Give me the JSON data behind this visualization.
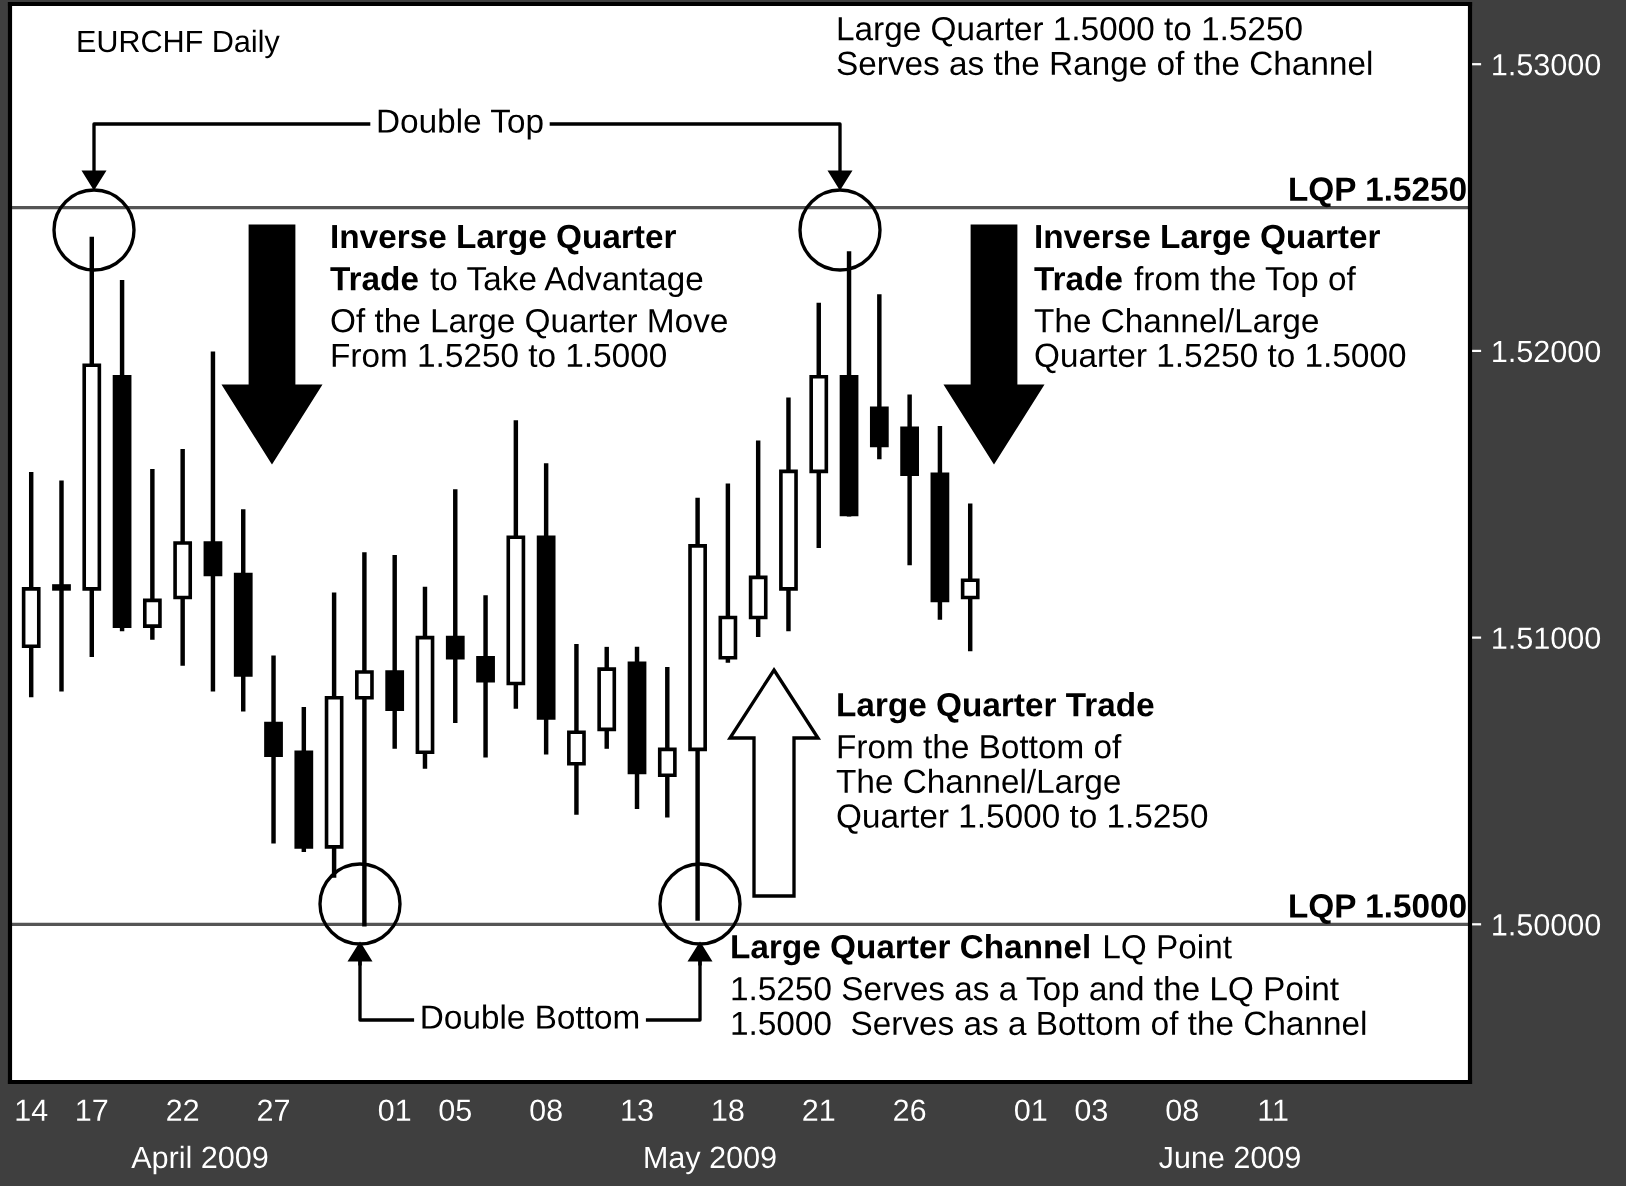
{
  "chart_data": {
    "type": "candlestick",
    "title": "EURCHF Daily",
    "categories": [
      "14",
      null,
      "17",
      null,
      null,
      "22",
      null,
      null,
      "27",
      null,
      null,
      null,
      "01",
      null,
      "05",
      null,
      null,
      "08",
      null,
      null,
      "13",
      null,
      null,
      "18",
      null,
      null,
      "21",
      null,
      null,
      "26",
      null,
      null,
      null,
      "01",
      null,
      "03",
      null,
      null,
      "08",
      null,
      null,
      "11",
      null,
      null,
      null,
      null,
      null,
      null
    ],
    "ohlc": [
      [
        1.5097,
        1.5157,
        1.508,
        1.5117
      ],
      [
        1.5117,
        1.5154,
        1.5082,
        1.5118
      ],
      [
        1.5117,
        1.5239,
        1.5094,
        1.5195
      ],
      [
        1.5191,
        1.5224,
        1.5103,
        1.5104
      ],
      [
        1.5104,
        1.5158,
        1.51,
        1.5113
      ],
      [
        1.5114,
        1.5165,
        1.5091,
        1.5133
      ],
      [
        1.5133,
        1.5199,
        1.5082,
        1.5122
      ],
      [
        1.5122,
        1.5144,
        1.5075,
        1.5087
      ],
      [
        1.507,
        1.5093,
        1.5029,
        1.5059
      ],
      [
        1.506,
        1.5075,
        1.5026,
        1.5027
      ],
      [
        1.5027,
        1.5115,
        1.5017,
        1.5079
      ],
      [
        1.5079,
        1.5129,
        1.5,
        1.5088
      ],
      [
        1.5088,
        1.5128,
        1.5062,
        1.5075
      ],
      [
        1.506,
        1.5117,
        1.5055,
        1.51
      ],
      [
        1.51,
        1.5151,
        1.5071,
        1.5093
      ],
      [
        1.5093,
        1.5114,
        1.5059,
        1.5085
      ],
      [
        1.5084,
        1.5175,
        1.5076,
        1.5135
      ],
      [
        1.5135,
        1.516,
        1.506,
        1.5072
      ],
      [
        1.5056,
        1.5097,
        1.5039,
        1.5067
      ],
      [
        1.5068,
        1.5096,
        1.5062,
        1.5089
      ],
      [
        1.5091,
        1.5096,
        1.5041,
        1.5053
      ],
      [
        1.5052,
        1.5089,
        1.5038,
        1.5061
      ],
      [
        1.5061,
        1.5148,
        1.5002,
        1.5132
      ],
      [
        1.5093,
        1.5153,
        1.5092,
        1.5107
      ],
      [
        1.5107,
        1.5168,
        1.5101,
        1.5121
      ],
      [
        1.5117,
        1.5183,
        1.5103,
        1.5158
      ],
      [
        1.5158,
        1.5216,
        1.5132,
        1.5191
      ],
      [
        1.5191,
        1.5234,
        1.5143,
        1.5143
      ],
      [
        1.518,
        1.5219,
        1.5163,
        1.5167
      ],
      [
        1.5173,
        1.5184,
        1.5126,
        1.5157
      ],
      [
        1.5157,
        1.5173,
        1.5107,
        1.5113
      ],
      [
        1.5114,
        1.5146,
        1.5096,
        1.512
      ],
      null,
      null,
      null,
      null,
      null,
      null,
      null,
      null,
      null,
      null,
      null,
      null,
      null,
      null,
      null,
      null
    ],
    "ylim": [
      1.4945,
      1.5321
    ],
    "yticks": [
      {
        "value": 1.5,
        "label": "1.50000"
      },
      {
        "value": 1.51,
        "label": "1.51000"
      },
      {
        "value": 1.52,
        "label": "1.52000"
      },
      {
        "value": 1.53,
        "label": "1.53000"
      }
    ],
    "ref_lines": [
      {
        "axis": "y",
        "value": 1.525,
        "label": "LQP 1.5250",
        "color": "#555555"
      },
      {
        "axis": "y",
        "value": 1.5,
        "label": "LQP 1.5000",
        "color": "#555555"
      }
    ],
    "annotations": [
      "Large Quarter 1.5000 to 1.5250\nServes as the Range of the Channel",
      "Double Top",
      "Inverse Large Quarter",
      "Trade",
      "to Take Advantage",
      "Of the Large Quarter Move\nFrom 1.5250 to 1.5000",
      "Inverse Large Quarter",
      "Trade",
      "from the Top of",
      "The Channel/Large\nQuarter 1.5250 to 1.5000",
      "Large Quarter Trade",
      "From the Bottom of\nThe Channel/Large\nQuarter 1.5000 to 1.5250",
      "Double Bottom",
      "Large Quarter Channel",
      "LQ Point",
      "1.5250 Serves as a Top and the LQ Point\n1.5000  Serves as a Bottom of the Channel",
      "April 2009",
      "May 2009",
      "June 2009"
    ]
  }
}
